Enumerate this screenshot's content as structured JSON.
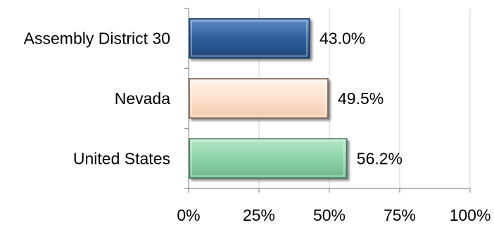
{
  "chart_data": {
    "type": "bar",
    "orientation": "horizontal",
    "title": "",
    "xlabel": "",
    "ylabel": "",
    "categories": [
      "Assembly District 30",
      "Nevada",
      "United States"
    ],
    "values": [
      43.0,
      49.5,
      56.2
    ],
    "value_labels": [
      "43.0%",
      "49.5%",
      "56.2%"
    ],
    "xlim": [
      0,
      100
    ],
    "ticks": [
      0,
      25,
      50,
      75,
      100
    ],
    "tick_labels": [
      "0%",
      "25%",
      "50%",
      "75%",
      "100%"
    ],
    "grid": true,
    "legend": "none",
    "bar_colors": [
      "#2E5E9A",
      "#FCE1CC",
      "#8ED3A8"
    ],
    "bar_edge_colors": [
      "#1C3C66",
      "#6E5A4C",
      "#3F6E55"
    ]
  }
}
